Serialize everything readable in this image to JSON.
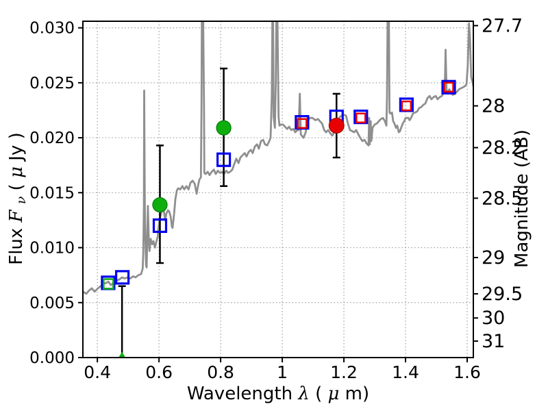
{
  "figure": {
    "background": "#ffffff"
  },
  "labels": {
    "xlabel_prefix": "Wavelength ",
    "xlabel_lambda": "λ",
    "xlabel_open": " (",
    "xlabel_mu": "μ",
    "xlabel_close": "m)",
    "ylabel_prefix": "Flux ",
    "ylabel_F": "F",
    "ylabel_nu": "ν",
    "ylabel_open": " ( ",
    "ylabel_mu": "μ",
    "ylabel_close": "Jy )",
    "ylabel_right": "Magnitude (AB)"
  },
  "chart_data": {
    "type": "line",
    "title": "",
    "xlabel": "Wavelength λ (μm)",
    "ylabel": "Flux Fν ( μJy )",
    "ylabel_right": "Magnitude (AB)",
    "xlim": [
      0.353,
      1.62
    ],
    "ylim": [
      0,
      0.0306
    ],
    "grid": "dotted",
    "legend": "none",
    "x_ticks": {
      "values": [
        0.4,
        0.6,
        0.8,
        1.0,
        1.2,
        1.4,
        1.6
      ],
      "labels": [
        "0.4",
        "0.6",
        "0.8",
        "1",
        "1.2",
        "1.4",
        "1.6"
      ]
    },
    "y_ticks_left": {
      "values": [
        0,
        0.005,
        0.01,
        0.015,
        0.02,
        0.025,
        0.03
      ],
      "labels": [
        "0.000",
        "0.005",
        "0.010",
        "0.015",
        "0.020",
        "0.025",
        "0.030"
      ]
    },
    "y_ticks_right": [
      {
        "label": "27.7",
        "flux": 0.0302
      },
      {
        "label": "28",
        "flux": 0.0229
      },
      {
        "label": "28.2",
        "flux": 0.0191
      },
      {
        "label": "28.5",
        "flux": 0.0145
      },
      {
        "label": "29",
        "flux": 0.0091
      },
      {
        "label": "29.5",
        "flux": 0.0058
      },
      {
        "label": "30",
        "flux": 0.0036
      },
      {
        "label": "31",
        "flux": 0.0015
      }
    ],
    "colors": {
      "spectrum": "#8f8f8f",
      "blue": "#0000ee",
      "red": "#e80000",
      "green": "#0fae0f",
      "errorbar": "#000000",
      "grid": "#9a9a9a",
      "frame": "#000000"
    },
    "spectrum": {
      "name": "model-spectrum",
      "points": [
        [
          0.353,
          0.006
        ],
        [
          0.364,
          0.0058
        ],
        [
          0.373,
          0.0061
        ],
        [
          0.382,
          0.0063
        ],
        [
          0.391,
          0.006
        ],
        [
          0.402,
          0.0063
        ],
        [
          0.411,
          0.0065
        ],
        [
          0.42,
          0.0067
        ],
        [
          0.429,
          0.0068
        ],
        [
          0.436,
          0.0069
        ],
        [
          0.444,
          0.0066
        ],
        [
          0.453,
          0.0068
        ],
        [
          0.462,
          0.007
        ],
        [
          0.471,
          0.0071
        ],
        [
          0.48,
          0.0073
        ],
        [
          0.489,
          0.0072
        ],
        [
          0.498,
          0.0073
        ],
        [
          0.507,
          0.0072
        ],
        [
          0.516,
          0.0074
        ],
        [
          0.524,
          0.0073
        ],
        [
          0.533,
          0.0075
        ],
        [
          0.542,
          0.0076
        ],
        [
          0.547,
          0.0081
        ],
        [
          0.549,
          0.0096
        ],
        [
          0.551,
          0.0138
        ],
        [
          0.552,
          0.0243
        ],
        [
          0.554,
          0.0138
        ],
        [
          0.556,
          0.0106
        ],
        [
          0.558,
          0.0084
        ],
        [
          0.56,
          0.0082
        ],
        [
          0.562,
          0.011
        ],
        [
          0.564,
          0.0138
        ],
        [
          0.567,
          0.0106
        ],
        [
          0.569,
          0.0097
        ],
        [
          0.573,
          0.0108
        ],
        [
          0.578,
          0.0103
        ],
        [
          0.582,
          0.0106
        ],
        [
          0.587,
          0.01
        ],
        [
          0.591,
          0.0105
        ],
        [
          0.596,
          0.011
        ],
        [
          0.598,
          0.0117
        ],
        [
          0.602,
          0.0126
        ],
        [
          0.607,
          0.0131
        ],
        [
          0.611,
          0.0138
        ],
        [
          0.616,
          0.0133
        ],
        [
          0.62,
          0.0125
        ],
        [
          0.624,
          0.0131
        ],
        [
          0.629,
          0.0134
        ],
        [
          0.633,
          0.0133
        ],
        [
          0.638,
          0.0128
        ],
        [
          0.642,
          0.0119
        ],
        [
          0.644,
          0.0118
        ],
        [
          0.649,
          0.0131
        ],
        [
          0.653,
          0.0144
        ],
        [
          0.658,
          0.0152
        ],
        [
          0.662,
          0.0154
        ],
        [
          0.669,
          0.0153
        ],
        [
          0.676,
          0.0156
        ],
        [
          0.682,
          0.0153
        ],
        [
          0.689,
          0.0156
        ],
        [
          0.696,
          0.0153
        ],
        [
          0.702,
          0.0159
        ],
        [
          0.709,
          0.0161
        ],
        [
          0.716,
          0.0158
        ],
        [
          0.722,
          0.0149
        ],
        [
          0.727,
          0.0157
        ],
        [
          0.731,
          0.0162
        ],
        [
          0.736,
          0.0164
        ],
        [
          0.738,
          0.0232
        ],
        [
          0.739,
          0.0315
        ],
        [
          0.743,
          0.0315
        ],
        [
          0.746,
          0.0232
        ],
        [
          0.747,
          0.0168
        ],
        [
          0.751,
          0.0167
        ],
        [
          0.758,
          0.0169
        ],
        [
          0.764,
          0.0166
        ],
        [
          0.771,
          0.0169
        ],
        [
          0.778,
          0.0171
        ],
        [
          0.784,
          0.0167
        ],
        [
          0.791,
          0.017
        ],
        [
          0.798,
          0.0168
        ],
        [
          0.804,
          0.0169
        ],
        [
          0.811,
          0.0167
        ],
        [
          0.818,
          0.017
        ],
        [
          0.824,
          0.0168
        ],
        [
          0.831,
          0.0169
        ],
        [
          0.838,
          0.0171
        ],
        [
          0.844,
          0.0176
        ],
        [
          0.851,
          0.0181
        ],
        [
          0.858,
          0.0177
        ],
        [
          0.864,
          0.0182
        ],
        [
          0.871,
          0.0184
        ],
        [
          0.878,
          0.0186
        ],
        [
          0.884,
          0.0183
        ],
        [
          0.891,
          0.0187
        ],
        [
          0.898,
          0.0189
        ],
        [
          0.904,
          0.0186
        ],
        [
          0.911,
          0.0192
        ],
        [
          0.918,
          0.0194
        ],
        [
          0.924,
          0.019
        ],
        [
          0.931,
          0.0197
        ],
        [
          0.938,
          0.0198
        ],
        [
          0.944,
          0.0194
        ],
        [
          0.951,
          0.0193
        ],
        [
          0.958,
          0.0197
        ],
        [
          0.962,
          0.02
        ],
        [
          0.966,
          0.0238
        ],
        [
          0.968,
          0.0315
        ],
        [
          0.97,
          0.0315
        ],
        [
          0.972,
          0.0219
        ],
        [
          0.976,
          0.0209
        ],
        [
          0.979,
          0.025
        ],
        [
          0.981,
          0.0315
        ],
        [
          0.984,
          0.0315
        ],
        [
          0.988,
          0.0219
        ],
        [
          0.991,
          0.0211
        ],
        [
          0.996,
          0.0212
        ],
        [
          1.002,
          0.0212
        ],
        [
          1.009,
          0.021
        ],
        [
          1.016,
          0.0208
        ],
        [
          1.022,
          0.021
        ],
        [
          1.029,
          0.0207
        ],
        [
          1.036,
          0.0208
        ],
        [
          1.042,
          0.0205
        ],
        [
          1.049,
          0.0207
        ],
        [
          1.053,
          0.0207
        ],
        [
          1.057,
          0.024
        ],
        [
          1.06,
          0.0203
        ],
        [
          1.069,
          0.02
        ],
        [
          1.076,
          0.0205
        ],
        [
          1.082,
          0.0215
        ],
        [
          1.089,
          0.0218
        ],
        [
          1.098,
          0.0218
        ],
        [
          1.107,
          0.0216
        ],
        [
          1.116,
          0.0217
        ],
        [
          1.122,
          0.0215
        ],
        [
          1.129,
          0.0213
        ],
        [
          1.136,
          0.0207
        ],
        [
          1.142,
          0.0205
        ],
        [
          1.149,
          0.0207
        ],
        [
          1.156,
          0.0204
        ],
        [
          1.162,
          0.0202
        ],
        [
          1.169,
          0.0205
        ],
        [
          1.18,
          0.0216
        ],
        [
          1.187,
          0.0219
        ],
        [
          1.193,
          0.022
        ],
        [
          1.2,
          0.0221
        ],
        [
          1.207,
          0.022
        ],
        [
          1.213,
          0.0213
        ],
        [
          1.22,
          0.0207
        ],
        [
          1.227,
          0.0206
        ],
        [
          1.233,
          0.0205
        ],
        [
          1.24,
          0.0207
        ],
        [
          1.247,
          0.0203
        ],
        [
          1.253,
          0.02
        ],
        [
          1.26,
          0.0197
        ],
        [
          1.267,
          0.0198
        ],
        [
          1.273,
          0.0195
        ],
        [
          1.28,
          0.0193
        ],
        [
          1.282,
          0.0218
        ],
        [
          1.284,
          0.0194
        ],
        [
          1.287,
          0.0215
        ],
        [
          1.289,
          0.0197
        ],
        [
          1.293,
          0.0209
        ],
        [
          1.3,
          0.0212
        ],
        [
          1.307,
          0.0213
        ],
        [
          1.313,
          0.0215
        ],
        [
          1.32,
          0.0217
        ],
        [
          1.327,
          0.0218
        ],
        [
          1.333,
          0.0215
        ],
        [
          1.338,
          0.0211
        ],
        [
          1.34,
          0.0238
        ],
        [
          1.342,
          0.0315
        ],
        [
          1.346,
          0.0315
        ],
        [
          1.348,
          0.0223
        ],
        [
          1.351,
          0.0222
        ],
        [
          1.356,
          0.0223
        ],
        [
          1.36,
          0.0215
        ],
        [
          1.364,
          0.0213
        ],
        [
          1.369,
          0.0209
        ],
        [
          1.373,
          0.0211
        ],
        [
          1.378,
          0.0205
        ],
        [
          1.382,
          0.0206
        ],
        [
          1.387,
          0.021
        ],
        [
          1.391,
          0.0213
        ],
        [
          1.396,
          0.0215
        ],
        [
          1.4,
          0.0218
        ],
        [
          1.404,
          0.0218
        ],
        [
          1.409,
          0.0218
        ],
        [
          1.413,
          0.0216
        ],
        [
          1.418,
          0.0218
        ],
        [
          1.424,
          0.0222
        ],
        [
          1.431,
          0.0223
        ],
        [
          1.438,
          0.0224
        ],
        [
          1.444,
          0.0227
        ],
        [
          1.451,
          0.0228
        ],
        [
          1.458,
          0.023
        ],
        [
          1.464,
          0.0231
        ],
        [
          1.471,
          0.0236
        ],
        [
          1.478,
          0.0238
        ],
        [
          1.484,
          0.0235
        ],
        [
          1.491,
          0.0237
        ],
        [
          1.498,
          0.0238
        ],
        [
          1.504,
          0.0235
        ],
        [
          1.511,
          0.0237
        ],
        [
          1.518,
          0.0238
        ],
        [
          1.522,
          0.024
        ],
        [
          1.527,
          0.0241
        ],
        [
          1.53,
          0.028
        ],
        [
          1.533,
          0.0243
        ],
        [
          1.538,
          0.0242
        ],
        [
          1.542,
          0.0244
        ],
        [
          1.547,
          0.0241
        ],
        [
          1.553,
          0.0239
        ],
        [
          1.56,
          0.024
        ],
        [
          1.567,
          0.0242
        ],
        [
          1.573,
          0.0244
        ],
        [
          1.58,
          0.0245
        ],
        [
          1.587,
          0.0246
        ],
        [
          1.593,
          0.0247
        ],
        [
          1.598,
          0.0249
        ],
        [
          1.602,
          0.0266
        ],
        [
          1.606,
          0.0304
        ],
        [
          1.609,
          0.0291
        ],
        [
          1.613,
          0.0255
        ],
        [
          1.618,
          0.025
        ],
        [
          1.62,
          0.0247
        ]
      ]
    },
    "series": {
      "blue_open_squares": {
        "marker": "square-open",
        "color": "#0000ee",
        "points": [
          [
            0.435,
            0.0068
          ],
          [
            0.481,
            0.0073
          ],
          [
            0.603,
            0.012
          ],
          [
            0.81,
            0.018
          ],
          [
            1.064,
            0.0214
          ],
          [
            1.176,
            0.0219
          ],
          [
            1.255,
            0.0219
          ],
          [
            1.403,
            0.023
          ],
          [
            1.54,
            0.0246
          ]
        ]
      },
      "red_open_squares": {
        "marker": "square-open",
        "color": "#e80000",
        "points": [
          [
            1.064,
            0.0213
          ],
          [
            1.255,
            0.0218
          ],
          [
            1.403,
            0.0229
          ],
          [
            1.54,
            0.0246
          ]
        ]
      },
      "green_open_squares": {
        "marker": "square-open",
        "color": "#0fae0f",
        "points": [
          [
            0.436,
            0.0067
          ]
        ]
      },
      "green_filled_circles": {
        "marker": "circle",
        "color": "#0fae0f",
        "points": [
          {
            "x": 0.603,
            "y": 0.0139,
            "err_up": 0.0054,
            "err_down": 0.0053
          },
          {
            "x": 0.81,
            "y": 0.0209,
            "err_up": 0.0054,
            "err_down": 0.0053
          }
        ]
      },
      "red_filled_circles": {
        "marker": "circle",
        "color": "#e80000",
        "points": [
          {
            "x": 1.176,
            "y": 0.0211,
            "err_up": 0.0029,
            "err_down": 0.0029
          }
        ]
      },
      "green_upper_limits": {
        "marker": "triangle-up",
        "color": "#0fae0f",
        "points": [
          {
            "x": 0.48,
            "y": 0.0002,
            "err_top": 0.0065
          }
        ]
      }
    }
  }
}
